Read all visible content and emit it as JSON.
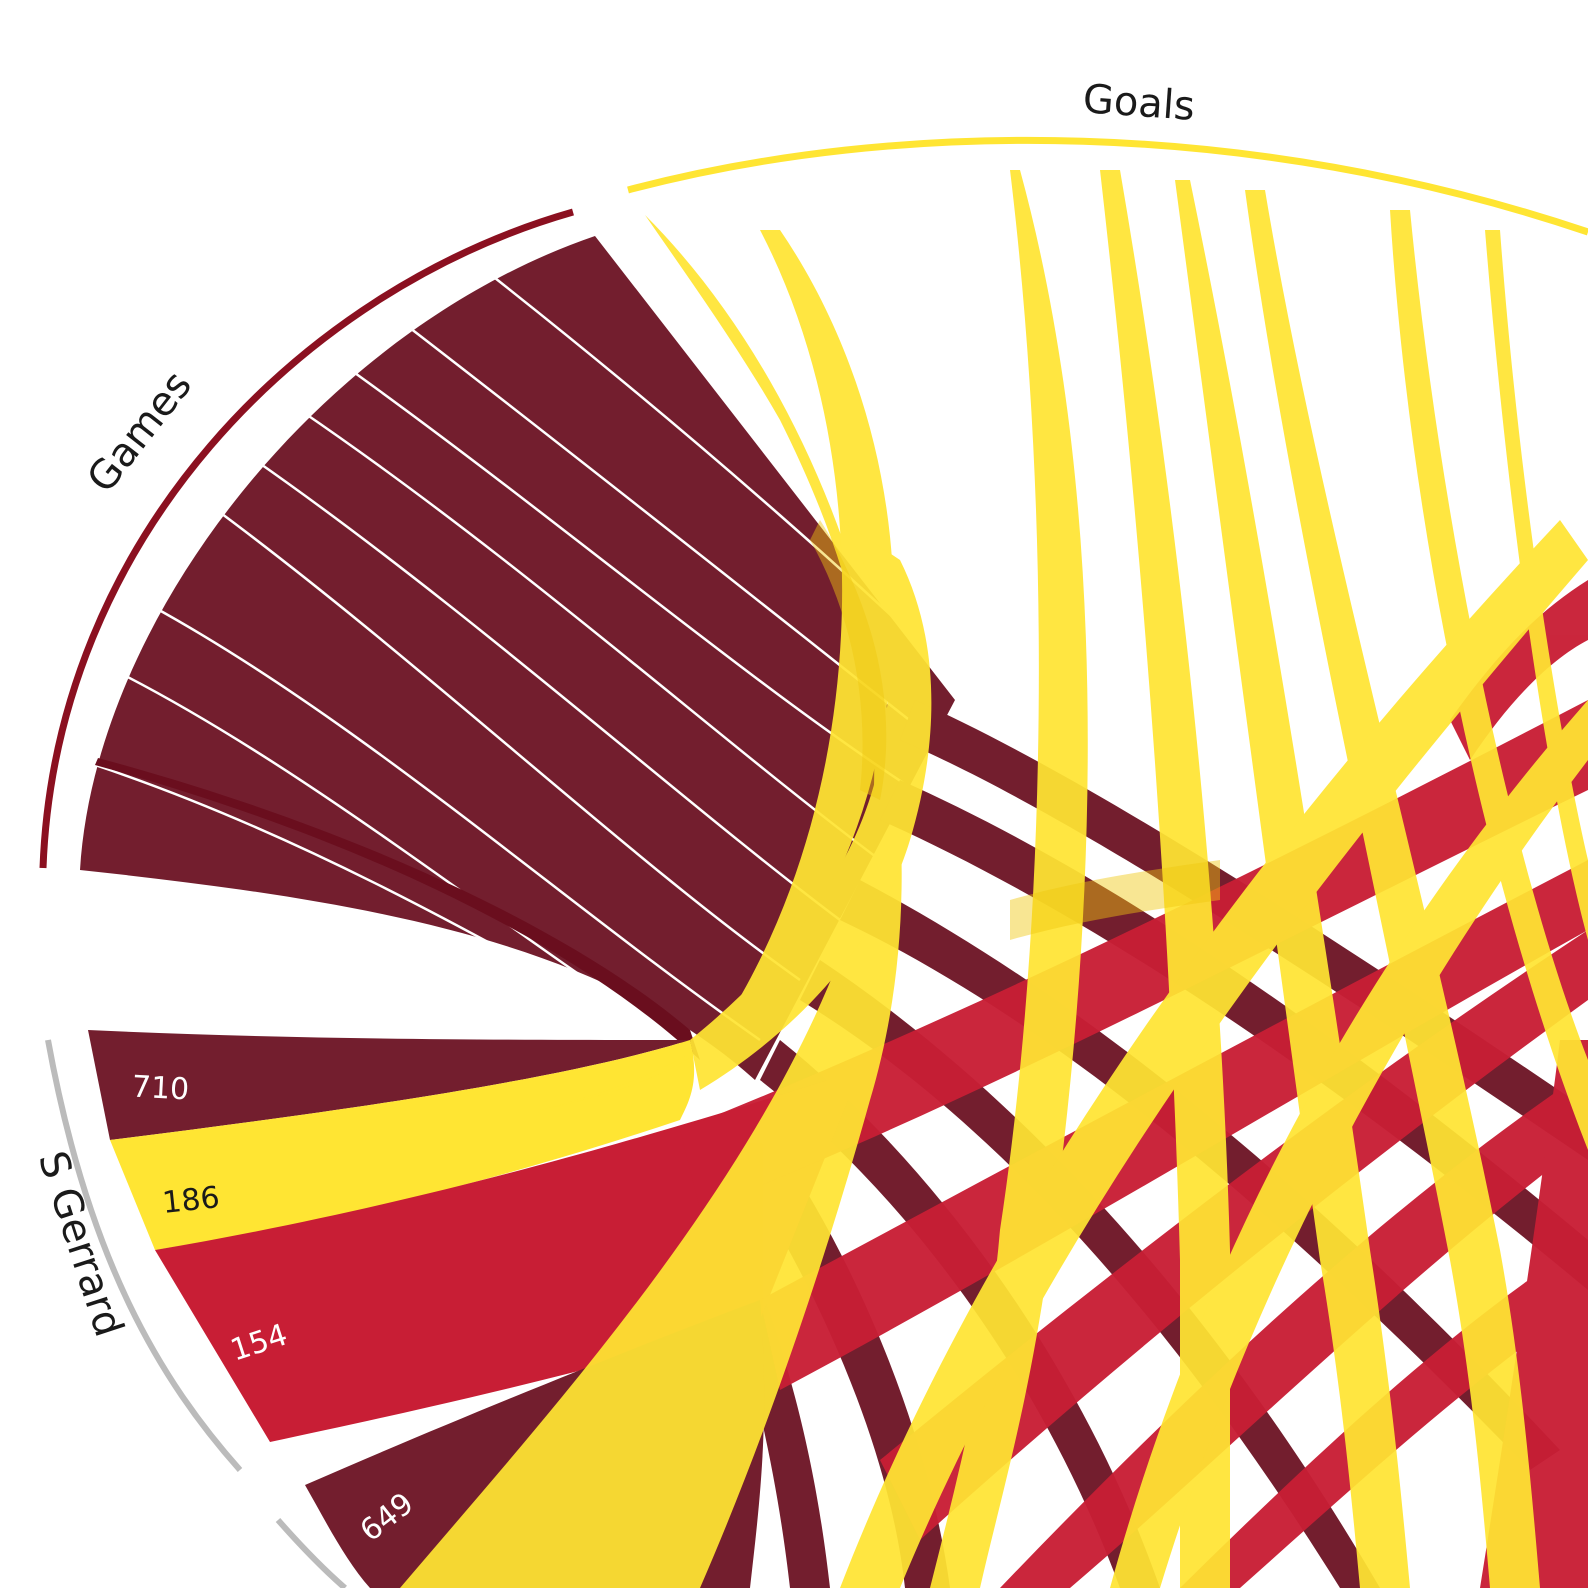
{
  "groups": {
    "games": {
      "label": "Games",
      "color": "#8B1020"
    },
    "goals": {
      "label": "Goals",
      "color": "#FFE533"
    },
    "player": {
      "label": "S Gerrard",
      "color": "#BBBBBB"
    }
  },
  "player_values": [
    {
      "metric": "games",
      "value": "710"
    },
    {
      "metric": "goals",
      "value": "186"
    },
    {
      "metric": "other",
      "value": "154"
    }
  ],
  "next_player_values": [
    {
      "metric": "games",
      "value": "649"
    }
  ],
  "colors": {
    "games": "#731E2E",
    "goals": "#FFE533",
    "other": "#C81E35",
    "goals_ribbon": "#F5CD12"
  }
}
